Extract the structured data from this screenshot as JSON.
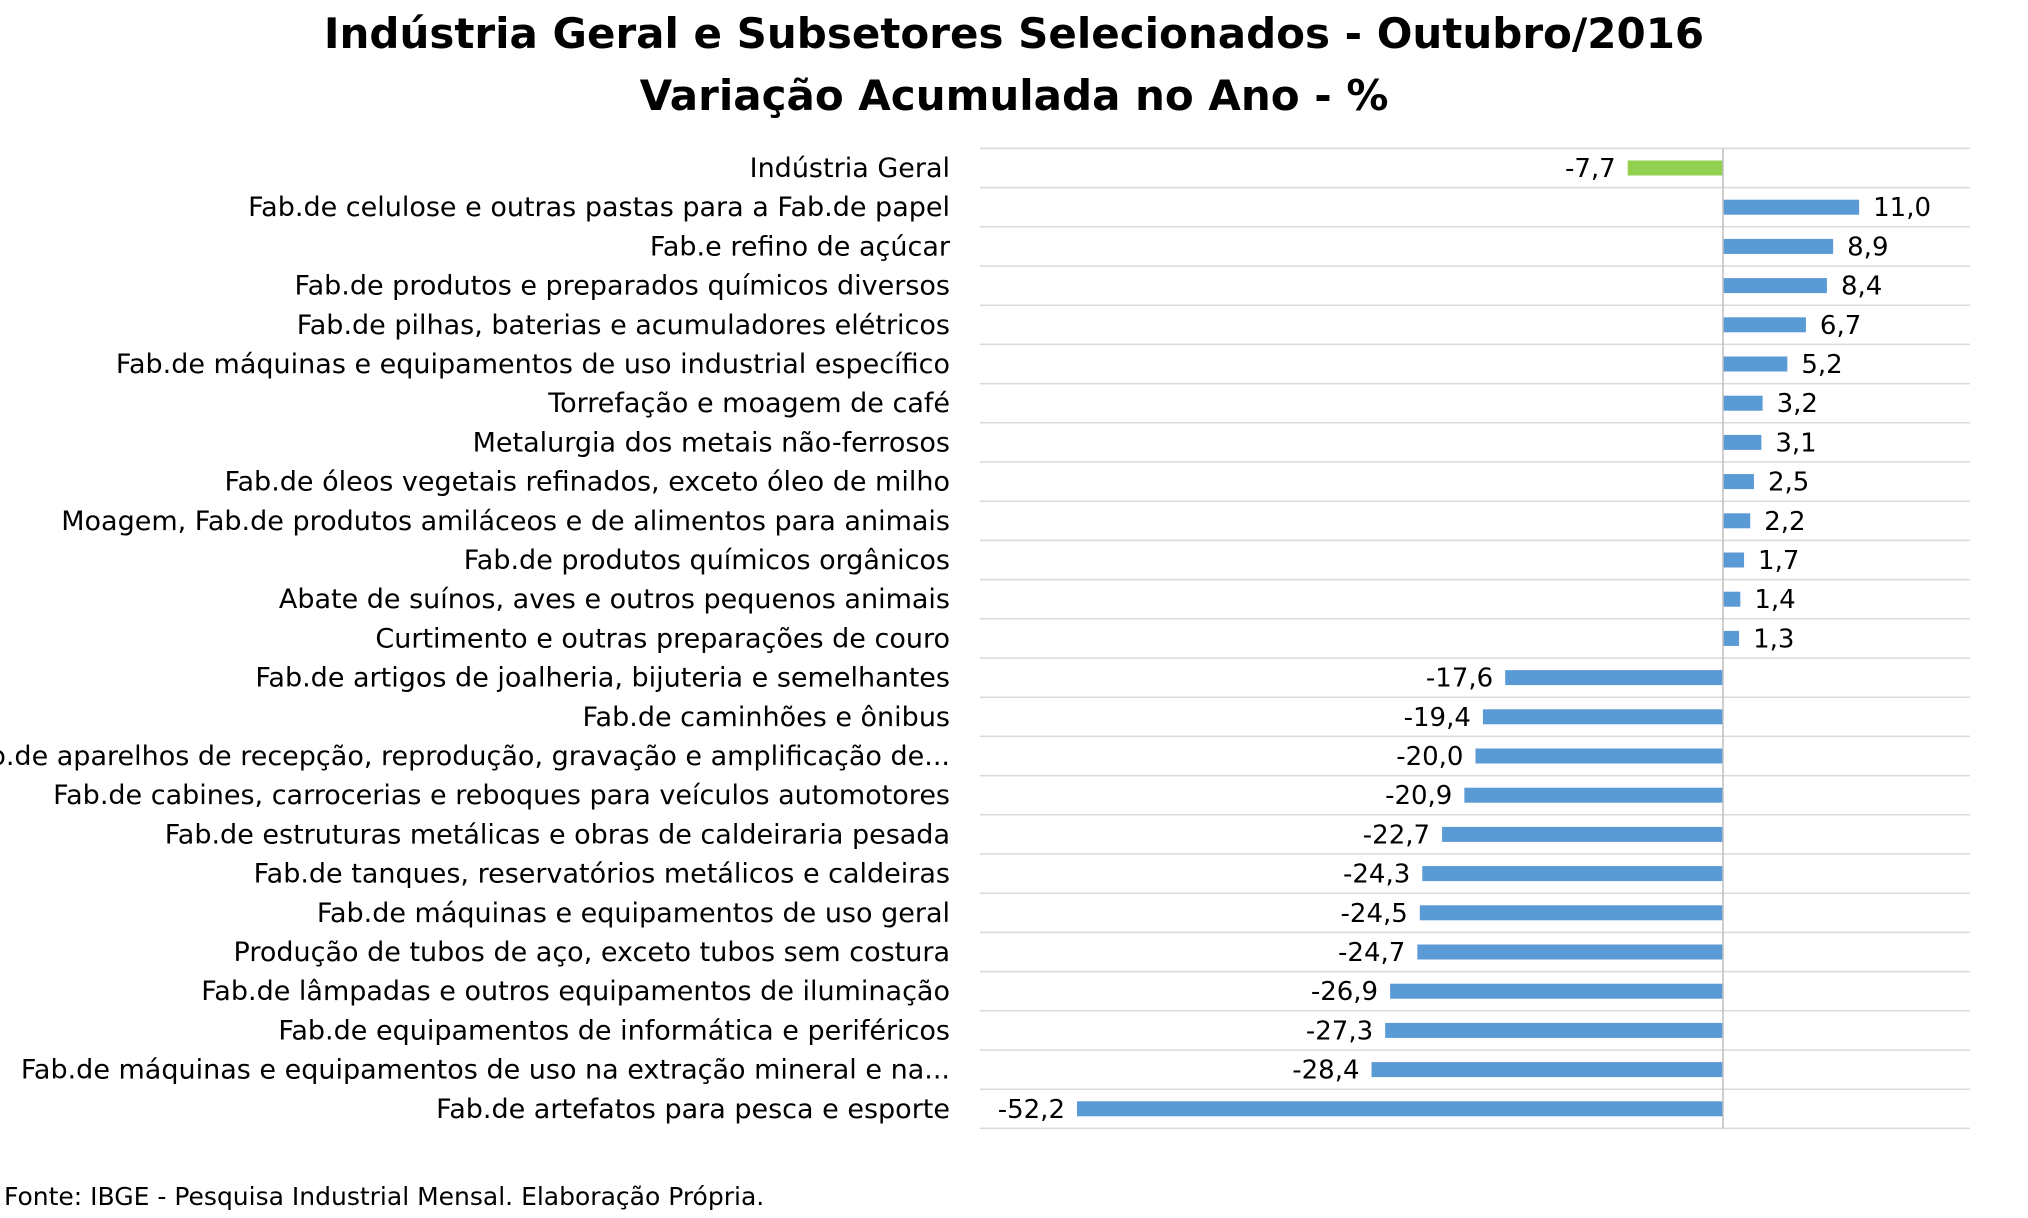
{
  "chart_data": {
    "type": "bar",
    "orientation": "horizontal",
    "title": "Indústria Geral e Subsetores Selecionados - Outubro/2016",
    "subtitle": "Variação Acumulada no Ano - %",
    "source": "Fonte: IBGE - Pesquisa Industrial Mensal. Elaboração Própria.",
    "xlim": [
      -60,
      30
    ],
    "grid": true,
    "legend": "none",
    "colors": {
      "highlight": "#92d050",
      "bar": "#5b9bd5",
      "grid": "#d9d9d9",
      "axis": "#bfbfbf"
    },
    "categories": [
      "Indústria Geral",
      "Fab.de celulose e outras pastas para a Fab.de papel",
      "Fab.e refino de açúcar",
      "Fab.de produtos e preparados químicos diversos",
      "Fab.de pilhas, baterias e acumuladores elétricos",
      "Fab.de máquinas e equipamentos de uso industrial específico",
      "Torrefação e moagem de café",
      "Metalurgia dos metais não-ferrosos",
      "Fab.de óleos vegetais refinados, exceto óleo de milho",
      "Moagem, Fab.de produtos amiláceos e de alimentos para animais",
      "Fab.de produtos químicos orgânicos",
      "Abate de suínos, aves e outros pequenos animais",
      "Curtimento e outras preparações de couro",
      "Fab.de artigos de joalheria, bijuteria e semelhantes",
      "Fab.de caminhões e ônibus",
      "Fab.de aparelhos de recepção, reprodução, gravação e amplificação de...",
      "Fab.de cabines, carrocerias e reboques para veículos automotores",
      "Fab.de estruturas metálicas e obras de caldeiraria pesada",
      "Fab.de tanques, reservatórios metálicos e caldeiras",
      "Fab.de máquinas e equipamentos de uso geral",
      "Produção de tubos de aço, exceto tubos sem costura",
      "Fab.de lâmpadas e outros equipamentos de iluminação",
      "Fab.de equipamentos de informática e periféricos",
      "Fab.de máquinas e equipamentos de uso na extração mineral e na...",
      "Fab.de artefatos para pesca e esporte"
    ],
    "values": [
      -7.7,
      11.0,
      8.9,
      8.4,
      6.7,
      5.2,
      3.2,
      3.1,
      2.5,
      2.2,
      1.7,
      1.4,
      1.3,
      -17.6,
      -19.4,
      -20.0,
      -20.9,
      -22.7,
      -24.3,
      -24.5,
      -24.7,
      -26.9,
      -27.3,
      -28.4,
      -52.2
    ],
    "value_labels": [
      "-7,7",
      "11,0",
      "8,9",
      "8,4",
      "6,7",
      "5,2",
      "3,2",
      "3,1",
      "2,5",
      "2,2",
      "1,7",
      "1,4",
      "1,3",
      "-17,6",
      "-19,4",
      "-20,0",
      "-20,9",
      "-22,7",
      "-24,3",
      "-24,5",
      "-24,7",
      "-26,9",
      "-27,3",
      "-28,4",
      "-52,2"
    ]
  }
}
